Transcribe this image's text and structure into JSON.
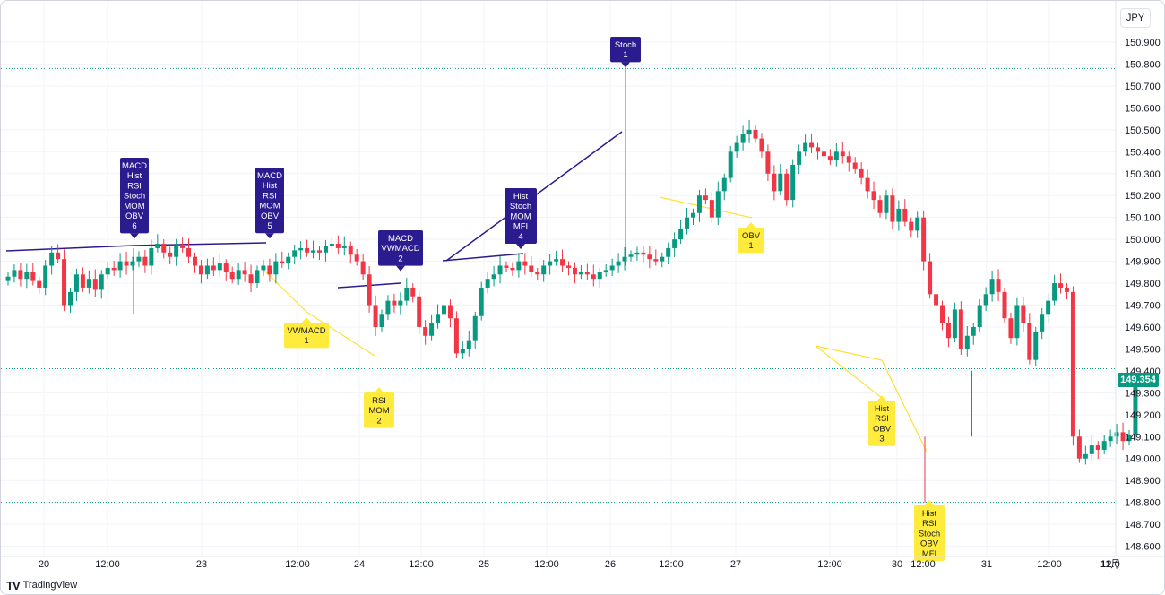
{
  "currency": "JPY",
  "last_price": "149.354",
  "brand": "TradingView",
  "brand_logo": "TV",
  "colors": {
    "up": "#089981",
    "down": "#f23645",
    "bear_label": "#2a1c8f",
    "bull_label": "#ffeb3b",
    "bear_line": "#2a1c8f",
    "bull_line": "#ffe135",
    "price_line": "#089981"
  },
  "chart_data": {
    "type": "candlestick",
    "y_ticks": [
      "150.900",
      "150.800",
      "150.700",
      "150.600",
      "150.500",
      "150.400",
      "150.300",
      "150.200",
      "150.100",
      "150.000",
      "149.900",
      "149.800",
      "149.700",
      "149.600",
      "149.500",
      "149.400",
      "149.300",
      "149.200",
      "149.100",
      "149.000",
      "148.900",
      "148.800",
      "148.700",
      "148.600"
    ],
    "ylim": [
      148.55,
      151.0
    ],
    "x_ticks": [
      "20",
      "12:00",
      "23",
      "12:00",
      "24",
      "12:00",
      "25",
      "12:00",
      "26",
      "12:00",
      "27",
      "12:00",
      "30",
      "12:00",
      "31",
      "12:00",
      "11月",
      "12:0"
    ],
    "reference_lines": [
      150.78,
      149.41,
      148.8
    ],
    "closes": [
      149.83,
      149.86,
      149.82,
      149.85,
      149.81,
      149.78,
      149.88,
      149.94,
      149.91,
      149.7,
      149.76,
      149.84,
      149.78,
      149.82,
      149.77,
      149.84,
      149.87,
      149.86,
      149.9,
      149.88,
      149.9,
      149.92,
      149.88,
      149.96,
      149.98,
      149.94,
      149.92,
      149.97,
      149.96,
      149.92,
      149.88,
      149.84,
      149.88,
      149.86,
      149.89,
      149.85,
      149.82,
      149.86,
      149.84,
      149.8,
      149.86,
      149.88,
      149.84,
      149.9,
      149.89,
      149.92,
      149.95,
      149.96,
      149.94,
      149.95,
      149.94,
      149.97,
      149.98,
      149.96,
      149.97,
      149.93,
      149.9,
      149.84,
      149.7,
      149.6,
      149.66,
      149.72,
      149.7,
      149.72,
      149.78,
      149.74,
      149.6,
      149.56,
      149.62,
      149.66,
      149.7,
      149.64,
      149.48,
      149.5,
      149.54,
      149.65,
      149.78,
      149.82,
      149.84,
      149.88,
      149.87,
      149.86,
      149.9,
      149.88,
      149.85,
      149.84,
      149.88,
      149.9,
      149.91,
      149.88,
      149.87,
      149.84,
      149.85,
      149.84,
      149.82,
      149.85,
      149.86,
      149.88,
      149.9,
      149.92,
      149.93,
      149.94,
      149.93,
      149.91,
      149.9,
      149.92,
      149.96,
      150.0,
      150.05,
      150.1,
      150.12,
      150.2,
      150.18,
      150.1,
      150.22,
      150.28,
      150.4,
      150.44,
      150.48,
      150.5,
      150.46,
      150.4,
      150.3,
      150.22,
      150.3,
      150.18,
      150.34,
      150.4,
      150.44,
      150.42,
      150.4,
      150.38,
      150.36,
      150.4,
      150.38,
      150.35,
      150.32,
      150.28,
      150.22,
      150.18,
      150.12,
      150.2,
      150.08,
      150.14,
      150.08,
      150.04,
      150.1,
      149.9,
      149.75,
      149.7,
      149.62,
      149.55,
      149.68,
      149.5,
      149.56,
      149.6,
      149.7,
      149.75,
      149.82,
      149.76,
      149.64,
      149.55,
      149.7,
      149.62,
      149.45,
      149.58,
      149.66,
      149.72,
      149.8,
      149.78,
      149.76,
      149.1,
      149.0,
      149.02,
      149.06,
      149.04,
      149.08,
      149.1,
      149.12,
      149.08,
      149.11,
      149.354
    ],
    "divergences": [
      {
        "kind": "bearish",
        "text": [
          "MACD",
          "Hist",
          "RSI",
          "Stoch",
          "MOM",
          "OBV",
          "6"
        ]
      },
      {
        "kind": "bearish",
        "text": [
          "MACD",
          "Hist",
          "RSI",
          "MOM",
          "OBV",
          "5"
        ]
      },
      {
        "kind": "bullish",
        "text": [
          "VWMACD",
          "1"
        ]
      },
      {
        "kind": "bullish",
        "text": [
          "RSI",
          "MOM",
          "2"
        ]
      },
      {
        "kind": "bearish",
        "text": [
          "MACD",
          "VWMACD",
          "2"
        ]
      },
      {
        "kind": "bearish",
        "text": [
          "Hist",
          "Stoch",
          "MOM",
          "MFI",
          "4"
        ]
      },
      {
        "kind": "bearish",
        "text": [
          "Stoch",
          "1"
        ]
      },
      {
        "kind": "bullish",
        "text": [
          "OBV",
          "1"
        ]
      },
      {
        "kind": "bullish",
        "text": [
          "Hist",
          "RSI",
          "OBV",
          "3"
        ]
      },
      {
        "kind": "bullish",
        "text": [
          "Hist",
          "RSI",
          "Stoch",
          "OBV",
          "MFI"
        ]
      }
    ]
  }
}
